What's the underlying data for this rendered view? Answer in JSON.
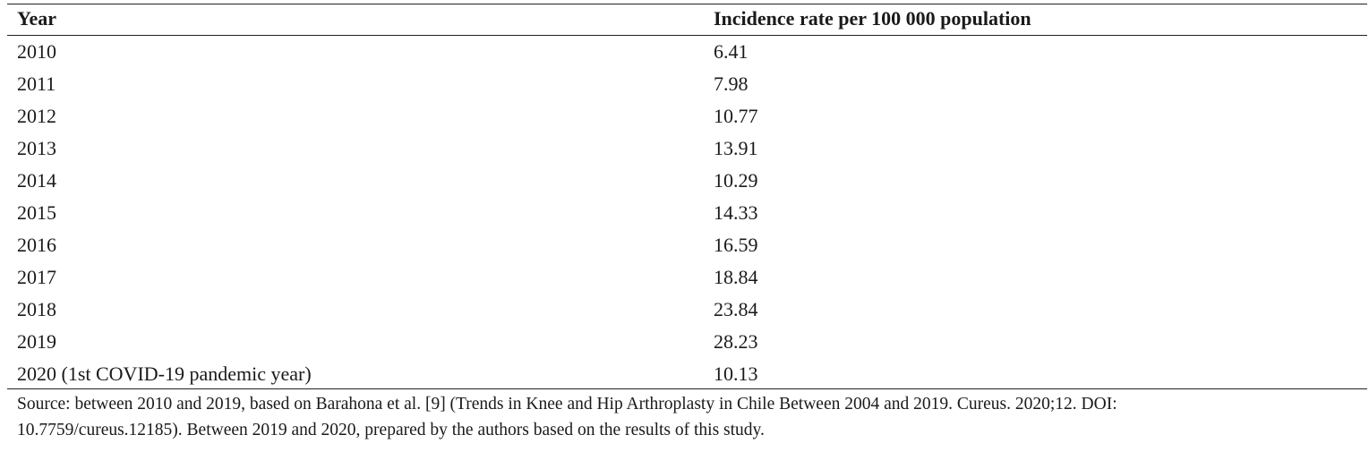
{
  "table": {
    "headers": {
      "year": "Year",
      "rate": "Incidence rate per 100 000 population"
    },
    "rows": [
      {
        "year": "2010",
        "rate": "6.41"
      },
      {
        "year": "2011",
        "rate": "7.98"
      },
      {
        "year": "2012",
        "rate": "10.77"
      },
      {
        "year": "2013",
        "rate": "13.91"
      },
      {
        "year": "2014",
        "rate": "10.29"
      },
      {
        "year": "2015",
        "rate": "14.33"
      },
      {
        "year": "2016",
        "rate": "16.59"
      },
      {
        "year": "2017",
        "rate": "18.84"
      },
      {
        "year": "2018",
        "rate": "23.84"
      },
      {
        "year": "2019",
        "rate": "28.23"
      },
      {
        "year": "2020 (1st COVID-19 pandemic year)",
        "rate": "10.13"
      }
    ]
  },
  "source": {
    "line1": "Source: between 2010 and 2019, based on Barahona et al. [9] (Trends in Knee and Hip Arthroplasty in Chile Between 2004 and 2019. Cureus. 2020;12. DOI:",
    "line2": "10.7759/cureus.12185). Between 2019 and 2020, prepared by the authors based on the results of this study."
  }
}
